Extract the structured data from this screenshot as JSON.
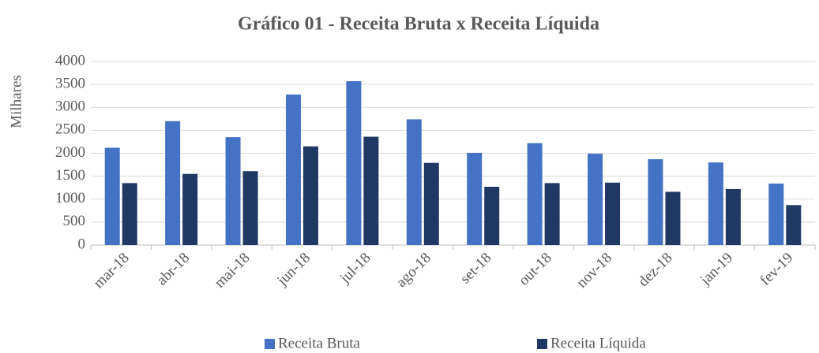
{
  "chart_data": {
    "type": "bar",
    "title": "Gráfico 01 - Receita Bruta x Receita Líquida",
    "y_label": "Milhares",
    "categories": [
      "mar-18",
      "abr-18",
      "mai-18",
      "jun-18",
      "jul-18",
      "ago-18",
      "set-18",
      "out-18",
      "nov-18",
      "dez-18",
      "jan-19",
      "fev-19"
    ],
    "series": [
      {
        "name": "Receita Bruta",
        "color": "#4472c4",
        "values": [
          2120,
          2700,
          2350,
          3280,
          3570,
          2740,
          2010,
          2220,
          1990,
          1870,
          1800,
          1340
        ]
      },
      {
        "name": "Receita Líquida",
        "color": "#203864",
        "values": [
          1350,
          1550,
          1610,
          2150,
          2360,
          1790,
          1270,
          1350,
          1360,
          1160,
          1220,
          870
        ]
      }
    ],
    "ylim": [
      0,
      4000
    ],
    "yticks": [
      0,
      500,
      1000,
      1500,
      2000,
      2500,
      3000,
      3500,
      4000
    ],
    "grid": true,
    "legend": "bottom"
  }
}
